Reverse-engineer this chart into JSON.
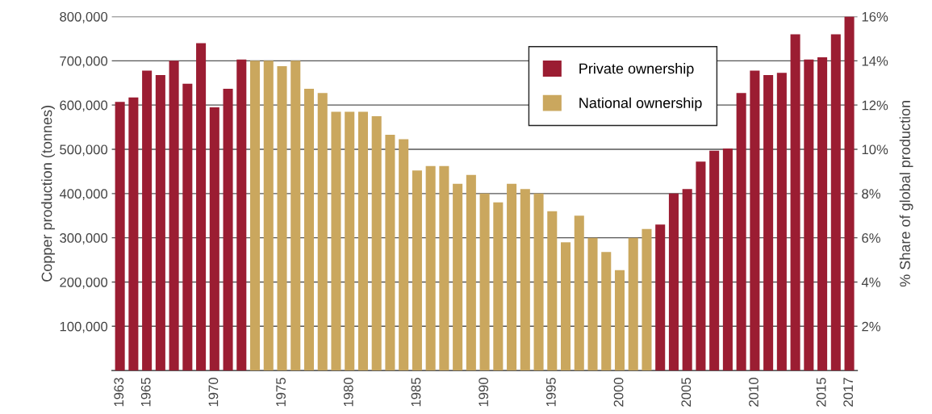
{
  "chart_data": {
    "type": "bar",
    "categories": [
      "1963",
      null,
      "1965",
      null,
      null,
      null,
      null,
      "1970",
      null,
      null,
      null,
      null,
      "1975",
      null,
      null,
      null,
      null,
      "1980",
      null,
      null,
      null,
      null,
      "1985",
      null,
      null,
      null,
      null,
      "1990",
      null,
      null,
      null,
      null,
      "1995",
      null,
      null,
      null,
      null,
      "2000",
      null,
      null,
      null,
      null,
      "2005",
      null,
      null,
      null,
      null,
      "2010",
      null,
      null,
      null,
      null,
      "2015",
      null,
      "2017"
    ],
    "series": [
      {
        "name": "Private ownership",
        "color": "#9b1d32",
        "values": [
          607000,
          617000,
          678000,
          668000,
          700000,
          648000,
          740000,
          595000,
          637000,
          703000,
          null,
          null,
          null,
          null,
          null,
          null,
          null,
          null,
          null,
          null,
          null,
          null,
          null,
          null,
          null,
          null,
          null,
          null,
          null,
          null,
          null,
          null,
          null,
          null,
          null,
          null,
          null,
          null,
          null,
          null,
          330000,
          400000,
          410000,
          472000,
          497000,
          502000,
          627000,
          678000,
          668000,
          673000,
          760000,
          703000,
          708000,
          760000,
          800000
        ]
      },
      {
        "name": "National ownership",
        "color": "#caa75e",
        "values": [
          null,
          null,
          null,
          null,
          null,
          null,
          null,
          null,
          null,
          null,
          700000,
          700000,
          688000,
          700000,
          637000,
          627000,
          585000,
          585000,
          585000,
          575000,
          533000,
          523000,
          452000,
          462000,
          462000,
          422000,
          442000,
          400000,
          380000,
          422000,
          410000,
          400000,
          360000,
          290000,
          350000,
          300000,
          268000,
          227000,
          300000,
          320000,
          null,
          null,
          null,
          null,
          null,
          null,
          null,
          null,
          null,
          null,
          null,
          null,
          null,
          null,
          null
        ]
      }
    ],
    "ylabel": "Copper production (tonnes)",
    "y2label": "% Share of global production",
    "ylim": [
      0,
      800000
    ],
    "yticks": [
      {
        "value": 100000,
        "label": "100,000"
      },
      {
        "value": 200000,
        "label": "200,000"
      },
      {
        "value": 300000,
        "label": "300,000"
      },
      {
        "value": 400000,
        "label": "400,000"
      },
      {
        "value": 500000,
        "label": "500,000"
      },
      {
        "value": 600000,
        "label": "600,000"
      },
      {
        "value": 700000,
        "label": "700,000"
      },
      {
        "value": 800000,
        "label": "800,000"
      }
    ],
    "y2lim": [
      0,
      16
    ],
    "y2ticks": [
      {
        "value": 2,
        "label": "2%"
      },
      {
        "value": 4,
        "label": "4%"
      },
      {
        "value": 6,
        "label": "6%"
      },
      {
        "value": 8,
        "label": "8%"
      },
      {
        "value": 10,
        "label": "10%"
      },
      {
        "value": 12,
        "label": "12%"
      },
      {
        "value": 14,
        "label": "14%"
      },
      {
        "value": 16,
        "label": "16%"
      }
    ],
    "grid": "y",
    "legend": "top right"
  }
}
